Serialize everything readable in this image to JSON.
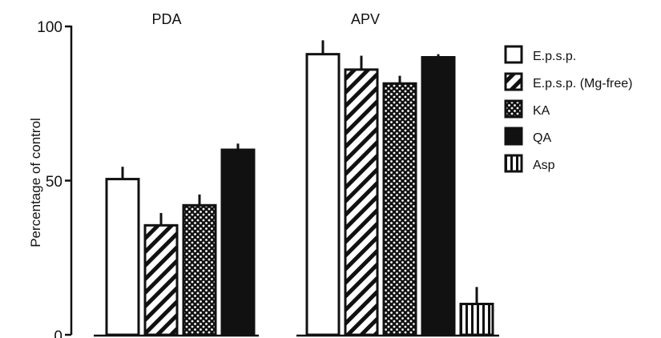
{
  "chart_data": {
    "type": "bar",
    "categories": [
      "PDA",
      "APV"
    ],
    "ylabel": "Percentage of control",
    "ylim": [
      0,
      100
    ],
    "yticks": [
      "0",
      "50",
      "100"
    ],
    "grid": false,
    "legend_position": "right",
    "series": [
      {
        "name": "E.p.s.p.",
        "pattern": "open",
        "values": [
          50.5,
          91
        ],
        "errors": [
          4,
          4.5
        ]
      },
      {
        "name": "E.p.s.p. (Mg-free)",
        "pattern": "hatched",
        "values": [
          35.5,
          86
        ],
        "errors": [
          4,
          4.5
        ]
      },
      {
        "name": "KA",
        "pattern": "dotted",
        "values": [
          42,
          81.5
        ],
        "errors": [
          3.5,
          2.5
        ]
      },
      {
        "name": "QA",
        "pattern": "solid",
        "values": [
          60,
          90
        ],
        "errors": [
          2,
          1
        ]
      },
      {
        "name": "Asp",
        "pattern": "vertical-lines",
        "values": [
          null,
          10
        ],
        "errors": [
          null,
          5.5
        ]
      }
    ]
  }
}
